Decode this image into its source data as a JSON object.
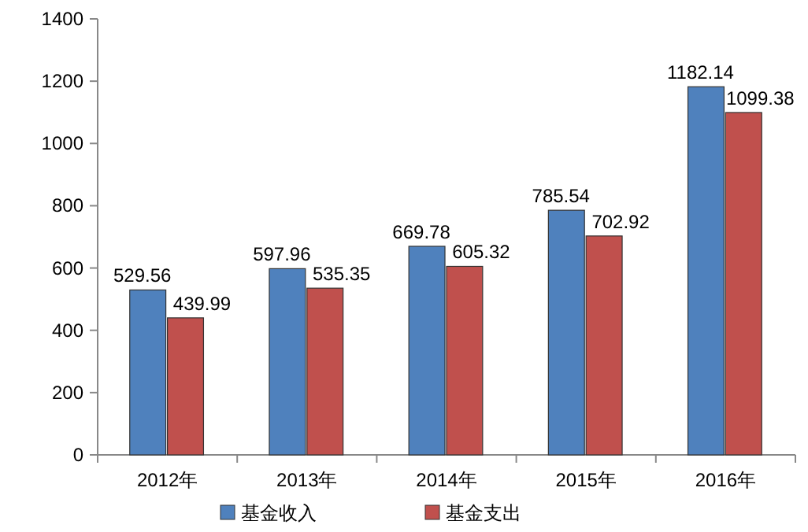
{
  "chart_data": {
    "type": "bar",
    "categories": [
      "2012年",
      "2013年",
      "2014年",
      "2015年",
      "2016年"
    ],
    "series": [
      {
        "name": "基金收入",
        "color": "#4f81bd",
        "values": [
          529.56,
          597.96,
          669.78,
          785.54,
          1182.14
        ]
      },
      {
        "name": "基金支出",
        "color": "#c0504d",
        "values": [
          439.99,
          535.35,
          605.32,
          702.92,
          1099.38
        ]
      }
    ],
    "ylim": [
      0,
      1400
    ],
    "yticks": [
      0,
      200,
      400,
      600,
      800,
      1000,
      1200,
      1400
    ],
    "data_labels": true,
    "legend": "bottom",
    "grid": false
  }
}
